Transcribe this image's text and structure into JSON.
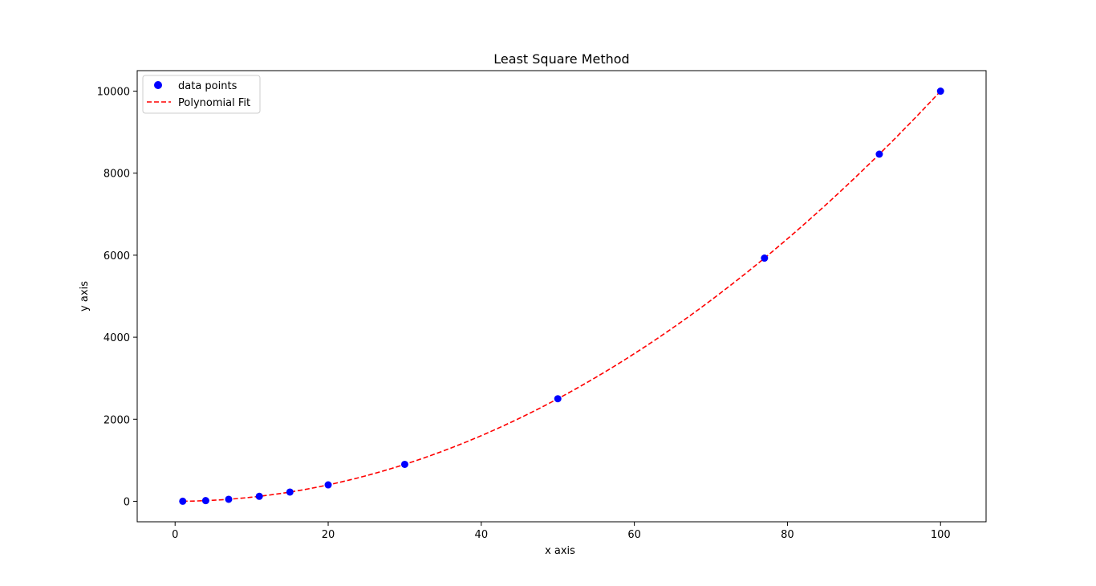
{
  "chart_data": {
    "type": "scatter",
    "title": "Least Square Method",
    "xlabel": "x axis",
    "ylabel": "y axis",
    "xlim": [
      -4.95,
      105.95
    ],
    "ylim": [
      -500,
      10500
    ],
    "x_ticks": [
      0,
      20,
      40,
      60,
      80,
      100
    ],
    "y_ticks": [
      0,
      2000,
      4000,
      6000,
      8000,
      10000
    ],
    "grid": false,
    "legend_position": "top-left",
    "series": [
      {
        "name": "data points",
        "kind": "scatter",
        "color": "#0000ff",
        "x": [
          1,
          4,
          7,
          11,
          15,
          20,
          30,
          50,
          77,
          92,
          100
        ],
        "y": [
          1,
          16,
          49,
          121,
          225,
          400,
          900,
          2500,
          5929,
          8464,
          10000
        ]
      },
      {
        "name": "Polynomial Fit",
        "kind": "line",
        "style": "dashed",
        "color": "#ff0000",
        "equation": {
          "a": 1,
          "b": 0,
          "c": 0
        },
        "x_range": [
          1,
          100
        ]
      }
    ]
  }
}
